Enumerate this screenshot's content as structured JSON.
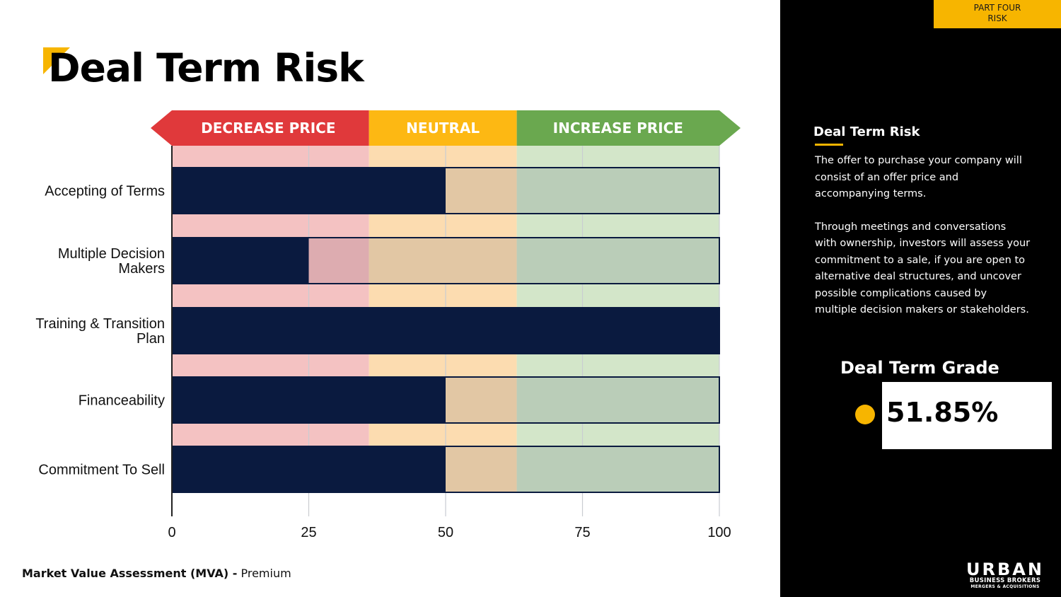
{
  "page": {
    "title": "Deal Term Risk",
    "footer_bold": "Market Value Assessment (MVA) -",
    "footer_rest": " Premium"
  },
  "badge": {
    "line1": "PART FOUR",
    "line2": "RISK"
  },
  "sidebar": {
    "title": "Deal Term Risk",
    "paragraphs": [
      "The offer to purchase your company will consist of an offer price and accompanying terms.",
      "Through meetings and conversations with ownership, investors will assess your commitment to a sale, if you are open to alternative deal structures, and uncover possible complications caused by multiple decision makers or stakeholders."
    ],
    "grade_title": "Deal Term Grade",
    "grade_value": "51.85%"
  },
  "logo": {
    "main": "URBAN",
    "sub": "BUSINESS BROKERS",
    "sub2": "MERGERS & ACQUISITIONS"
  },
  "colors": {
    "bar": "#0a1a3f",
    "decrease": "#e0393b",
    "neutral": "#fdb813",
    "increase": "#6aa84f",
    "accent": "#f7b500"
  },
  "chart_data": {
    "type": "bar",
    "orientation": "horizontal",
    "xlim": [
      0,
      100
    ],
    "xticks": [
      0,
      25,
      50,
      75,
      100
    ],
    "zones": [
      {
        "label": "DECREASE PRICE",
        "from": 0,
        "to": 36
      },
      {
        "label": "NEUTRAL",
        "from": 36,
        "to": 63
      },
      {
        "label": "INCREASE PRICE",
        "from": 63,
        "to": 100
      }
    ],
    "categories": [
      "Accepting of Terms",
      "Multiple Decision Makers",
      "Training & Transition Plan",
      "Financeability",
      "Commitment To Sell"
    ],
    "values": [
      50,
      25,
      100,
      50,
      50
    ],
    "grid": true
  }
}
